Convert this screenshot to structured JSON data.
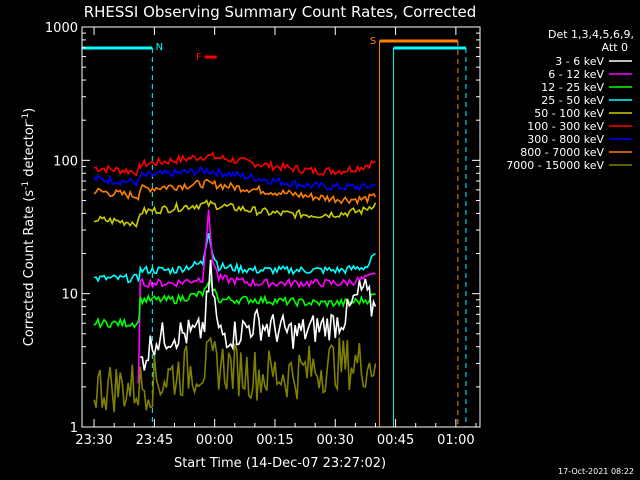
{
  "chart_data": {
    "type": "line",
    "title": "RHESSI Observing Summary Count Rates, Corrected",
    "xlabel": "Start Time (14-Dec-07 23:27:02)",
    "ylabel_main": "Corrected Count Rate (s",
    "ylabel_sup1": "-1",
    "ylabel_mid": " detector",
    "ylabel_sup2": "-1",
    "ylabel_end": ")",
    "yscale": "log",
    "ylim": [
      1,
      1000
    ],
    "xlim_minutes": [
      -3,
      96
    ],
    "x_ticks": [
      {
        "m": 0,
        "label": "23:30"
      },
      {
        "m": 15,
        "label": "23:45"
      },
      {
        "m": 30,
        "label": "00:00"
      },
      {
        "m": 45,
        "label": "00:15"
      },
      {
        "m": 60,
        "label": "00:30"
      },
      {
        "m": 75,
        "label": "00:45"
      },
      {
        "m": 90,
        "label": "01:00"
      }
    ],
    "y_ticks": [
      {
        "v": 1,
        "label": "1"
      },
      {
        "v": 10,
        "label": "10"
      },
      {
        "v": 100,
        "label": "100"
      },
      {
        "v": 1000,
        "label": "1000"
      }
    ],
    "legend": {
      "header1": "Det 1,3,4,5,6,9,",
      "header2": "Att 0",
      "entries": [
        {
          "name": "3 - 6 keV",
          "color": "#ffffff"
        },
        {
          "name": "6 - 12 keV",
          "color": "#ff00ff"
        },
        {
          "name": "12 - 25 keV",
          "color": "#00ff00"
        },
        {
          "name": "25 - 50 keV",
          "color": "#00ffff"
        },
        {
          "name": "50 - 100 keV",
          "color": "#cccc00"
        },
        {
          "name": "100 - 300 keV",
          "color": "#ff0000"
        },
        {
          "name": "300 - 800 keV",
          "color": "#0000ff"
        },
        {
          "name": "800 - 7000 keV",
          "color": "#ff8000"
        },
        {
          "name": "7000 - 15000 keV",
          "color": "#808000"
        }
      ]
    },
    "series": [
      {
        "name": "100 - 300 keV",
        "color": "#ff0000",
        "x": [
          0,
          11,
          11.5,
          20,
          28,
          35,
          45,
          55,
          62,
          67,
          70
        ],
        "y": [
          88,
          82,
          93,
          100,
          108,
          100,
          90,
          83,
          84,
          90,
          98
        ]
      },
      {
        "name": "300 - 800 keV",
        "color": "#0000ff",
        "x": [
          0,
          11,
          11.5,
          20,
          28,
          35,
          45,
          55,
          62,
          67,
          70
        ],
        "y": [
          73,
          68,
          76,
          80,
          84,
          78,
          70,
          64,
          63,
          63,
          65
        ]
      },
      {
        "name": "800 - 7000 keV",
        "color": "#ff8000",
        "x": [
          0,
          11,
          11.5,
          20,
          28,
          35,
          45,
          55,
          62,
          67,
          70
        ],
        "y": [
          59,
          54,
          61,
          64,
          67,
          63,
          58,
          53,
          51,
          51,
          53
        ]
      },
      {
        "name": "50 - 100 keV",
        "color": "#cccc00",
        "x": [
          0,
          11,
          11.5,
          20,
          28,
          35,
          45,
          55,
          62,
          67,
          70
        ],
        "y": [
          36,
          34,
          41,
          44,
          47,
          44,
          40,
          39,
          40,
          42,
          48
        ]
      },
      {
        "name": "25 - 50 keV",
        "color": "#00ffff",
        "x": [
          0,
          11,
          11.5,
          20,
          27,
          28.5,
          29.5,
          31,
          40,
          55,
          62,
          68,
          70
        ],
        "y": [
          13,
          13,
          15,
          15,
          17,
          30,
          20,
          16,
          15,
          15,
          15,
          16,
          20
        ]
      },
      {
        "name": "6 - 12 keV",
        "color": "#ff00ff",
        "x": [
          11,
          11.5,
          20,
          27,
          28.5,
          29.5,
          31,
          40,
          55,
          62,
          68,
          70
        ],
        "y": [
          2,
          12,
          12,
          13,
          40,
          18,
          13,
          12,
          12,
          12,
          13,
          14
        ]
      },
      {
        "name": "12 - 25 keV",
        "color": "#00ff00",
        "x": [
          0,
          11,
          11.5,
          20,
          27,
          29,
          31,
          40,
          55,
          62,
          68,
          70
        ],
        "y": [
          6,
          6,
          9,
          9,
          10,
          12,
          9,
          9,
          8.5,
          8.5,
          9,
          10
        ]
      },
      {
        "name": "3 - 6 keV",
        "color": "#ffffff",
        "x": [
          11.5,
          15,
          20,
          26,
          27.5,
          29,
          31,
          35,
          40,
          50,
          60,
          63,
          65,
          67,
          69,
          70
        ],
        "y": [
          3,
          4.5,
          5,
          5,
          6,
          14,
          5,
          5,
          6,
          5,
          6,
          7,
          9,
          11,
          8,
          8
        ]
      },
      {
        "name": "7000 - 15000 keV",
        "color": "#808000",
        "x": [
          0,
          11,
          20,
          30,
          40,
          50,
          60,
          70
        ],
        "y": [
          2,
          2,
          2.5,
          3,
          2.5,
          2.5,
          3,
          3
        ]
      }
    ],
    "annotations": [
      {
        "label": "N",
        "color": "#00ffff"
      },
      {
        "label": "F",
        "color": "#ff0000"
      },
      {
        "label": "S",
        "color": "#ff8000"
      }
    ],
    "footer": "17-Oct-2021 08:22"
  }
}
